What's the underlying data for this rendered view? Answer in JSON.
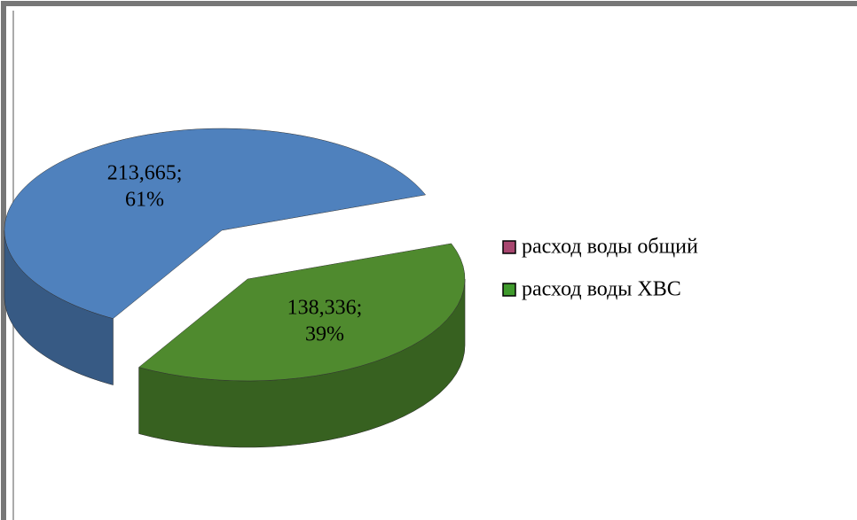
{
  "chart_data": {
    "type": "pie",
    "categories": [
      "расход воды общий",
      "расход воды ХВС"
    ],
    "values": [
      61,
      39
    ],
    "value_labels": [
      "213,665; 61%",
      "138,336; 39%"
    ],
    "colors": [
      "#4f81bd",
      "#4f8a2e"
    ],
    "legend_colors": [
      "#a8466f",
      "#3f9a2c"
    ]
  }
}
